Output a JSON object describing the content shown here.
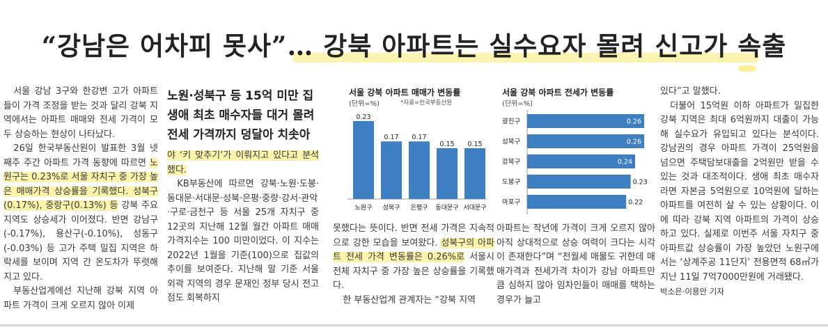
{
  "headline": "“강남은 어차피 못사”… 강북 아파트는 실수요자 몰려 신고가 속출",
  "subheadline": "노원·성북구 등 15억 미만 집 생애 최초 매수자들 대거 몰려 전세 가격까지 덩달아 치솟아",
  "col1": {
    "p1": "서울 강남 3구와 한강변 고가 아파트들이 가격 조정을 받는 것과 달리 강북 지역에서는 아파트 매매와 전세 가격이 모두 상승하는 현상이 나타났다.",
    "p2a": "26일 한국부동산원이 발표한 3월 넷째주 주간 아파트 가격 동향에 따르면 ",
    "p2b": "노원구는 0.23%로 서울 자치구 중 가장 높은 매매가격 상승률을 기록했다. 성북구(0.17%), 중랑구(0.13%) 등",
    "p2c": " 강북 주요 지역도 상승세가 이어졌다. 반면 강남구(-0.17%), 용산구(-0.10%), 성동구(-0.03%) 등 고가 주택 밀집 지역은 하락세를 보이며 지역 간 온도차가 뚜렷해지고 있다.",
    "p3": "부동산업계에선 지난해 강북 지역 아파트 가격이 크게 오르지 않아 이제"
  },
  "col2": {
    "p1": "야 ‘키 맞추기’가 이뤄지고 있다고 분석했다.",
    "p2": "KB부동산에 따르면 강북·노원·도봉·동대문·서대문·성북·은평·중랑·강서·관악·구로·금천구 등 서울 25개 자치구 중 12곳의 지난해 12월 월간 아파트 매매가격지수는 100 미만이었다. 이 지수는 2022년 1월을 기준(100)으로 집값의 추이를 보여준다. 지난해 말 기준 서울 외곽 지역의 경우 문재인 정부 당시 전고점도 회복하지"
  },
  "col3": {
    "p1a": "못했다는 뜻이다. 반면 전세 가격은 지속적으로 강한 모습을 보여왔다. ",
    "p1b": "성북구의 아파트 전세 가격 변동률은 0.26%로",
    "p1c": " 서울시 전체 자치구 중 가장 높은 상승률을 기록했다.",
    "p2": "한 부동산업계 관계자는 “강북 지역"
  },
  "col4": {
    "p1": "아파트는 작년에 가격이 크게 오르지 않아 아직 상대적으로 상승 여력이 크다는 시각이 존재한다”며 “전월세 매물도 귀한데 매매가격과 전세가격 차이가 강남 아파트만큼 심하지 않아 임차인들이 매매를 택하는 경우가 늘고"
  },
  "col5": {
    "p1": "있다”고 말했다.",
    "p2": "더불어 15억원 이하 아파트가 밀집한 강북 지역은 최대 6억원까지 대출이 가능해 실수요가 유입되고 있다는 분석이다. 강남권의 경우 아파트 가격이 25억원을 넘으면 주택담보대출을 2억원만 받을 수 있는 것과 대조적이다. 생애 최초 매수자라면 자본금 5억원으로 10억원에 달하는 아파트를 여전히 살 수 있는 상황이다. 이에 따라 강북 지역 아파트의 가격이 상승하고 있다. 실제로 이번주 서울 자치구 중 아파트값 상승률이 가장 높았던 노원구에서는 ‘상계주공 11단지’ 전용면적 68㎡가 지난 11일 7억7000만원에 거래됐다.",
    "byline": "박소은·이용안 기자"
  },
  "chart_data": [
    {
      "type": "bar",
      "title": "서울 강북 아파트 매매가 변동률",
      "unit": "(단위=%)",
      "source": "*자료=한국부동산원",
      "categories": [
        "노원구",
        "성북구",
        "은평구",
        "동대문구",
        "서대문구"
      ],
      "values": [
        0.23,
        0.17,
        0.17,
        0.15,
        0.15
      ],
      "value_labels": [
        "0.23",
        "0.17",
        "0.17",
        "0.15",
        "0.15"
      ],
      "orientation": "vertical",
      "color": "#3d7fc0"
    },
    {
      "type": "bar",
      "title": "서울 강북 아파트 전세가 변동률",
      "unit": "(단위=%)",
      "categories": [
        "광진구",
        "성북구",
        "강북구",
        "도봉구",
        "마포구"
      ],
      "values": [
        0.26,
        0.26,
        0.24,
        0.23,
        0.22
      ],
      "value_labels": [
        "0.26",
        "0.26",
        "0.24",
        "0.23",
        "0.22"
      ],
      "orientation": "horizontal",
      "color": "#3d7fc0"
    }
  ]
}
